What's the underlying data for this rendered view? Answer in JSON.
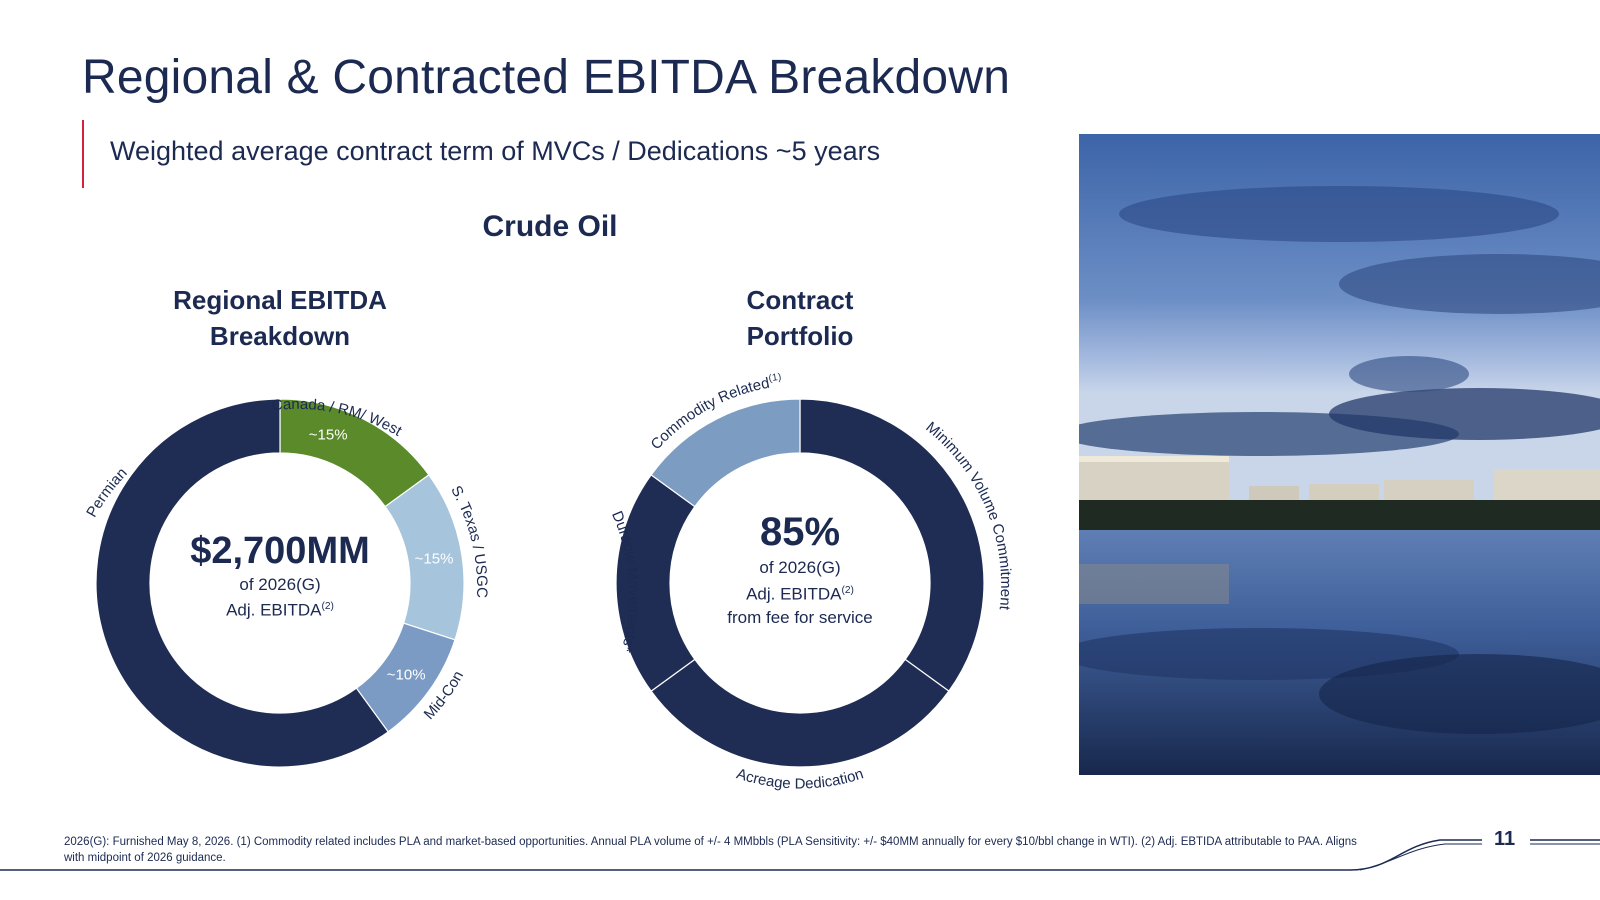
{
  "page": {
    "title": "Regional & Contracted EBITDA Breakdown",
    "subtitle": "Weighted average contract term of MVCs / Dedications ~5 years",
    "section_title": "Crude Oil",
    "page_number": "11",
    "footnote": "2026(G): Furnished May 8, 2026. (1) Commodity related includes PLA and market-based opportunities. Annual PLA volume of +/- 4 MMbbls (PLA Sensitivity: +/- $40MM annually for every $10/bbl change in WTI). (2) Adj. EBTIDA attributable to PAA. Aligns with midpoint of 2026 guidance."
  },
  "regional": {
    "title_line1": "Regional EBITDA",
    "title_line2": "Breakdown",
    "center_value": "$2,700MM",
    "center_line1": "of 2026(G)",
    "center_line2": "Adj. EBITDA",
    "center_sup": "(2)"
  },
  "contract": {
    "title_line1": "Contract",
    "title_line2": "Portfolio",
    "center_value": "85%",
    "center_line1": "of 2026(G)",
    "center_line2": "Adj. EBITDA",
    "center_sup": "(2)",
    "center_line3": "from fee for service"
  },
  "chart_data": [
    {
      "type": "pie",
      "title": "Regional EBITDA Breakdown",
      "slices": [
        {
          "label": "Canada / RM/ West",
          "value": 15,
          "value_label": "~15%",
          "color": "#5a8a2a"
        },
        {
          "label": "S. Texas / USGC",
          "value": 15,
          "value_label": "~15%",
          "color": "#a6c4dc"
        },
        {
          "label": "Mid-Con",
          "value": 10,
          "value_label": "~10%",
          "color": "#7b9bc4"
        },
        {
          "label": "Permian",
          "value": 60,
          "value_label": "~60%",
          "color": "#1f2d55"
        }
      ]
    },
    {
      "type": "pie",
      "title": "Contract Portfolio",
      "slices": [
        {
          "label": "Minimum Volume Commitment",
          "value": 35,
          "color": "#1f2d55"
        },
        {
          "label": "Acreage Dedication",
          "value": 30,
          "color": "#1f2d55"
        },
        {
          "label": "Durable Movements*",
          "value": 20,
          "color": "#1f2d55"
        },
        {
          "label": "Commodity Related",
          "label_sup": "(1)",
          "value": 15,
          "color": "#7d9cc2"
        }
      ]
    }
  ]
}
